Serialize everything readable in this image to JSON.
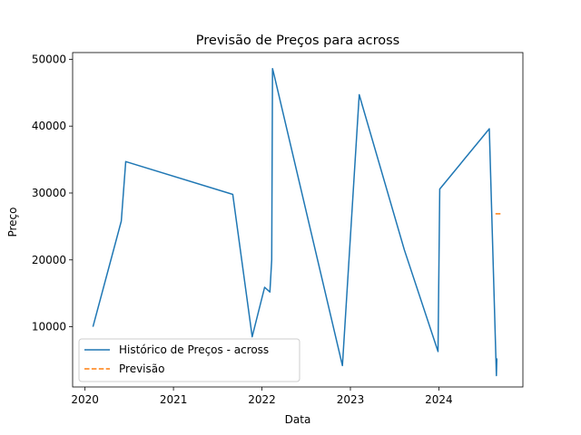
{
  "chart_data": {
    "type": "line",
    "title": "Previsão de Preços para across",
    "xlabel": "Data",
    "ylabel": "Preço",
    "xlim": [
      2019.86,
      2024.95
    ],
    "ylim": [
      1000,
      51000
    ],
    "x_ticks": [
      2020,
      2021,
      2022,
      2023,
      2024
    ],
    "x_tick_labels": [
      "2020",
      "2021",
      "2022",
      "2023",
      "2024"
    ],
    "y_ticks": [
      10000,
      20000,
      30000,
      40000,
      50000
    ],
    "y_tick_labels": [
      "10000",
      "20000",
      "30000",
      "40000",
      "50000"
    ],
    "grid": false,
    "legend_position": "bottom-left",
    "series": [
      {
        "name": "Histórico de Preços - across",
        "color": "#1f77b4",
        "style": "solid",
        "x": [
          2020.09,
          2020.41,
          2020.46,
          2021.67,
          2021.89,
          2022.03,
          2022.09,
          2022.11,
          2022.12,
          2022.14,
          2022.91,
          2023.1,
          2023.61,
          2023.99,
          2024.01,
          2024.57,
          2024.65,
          2024.655
        ],
        "y": [
          10000,
          25800,
          34700,
          29800,
          8500,
          15900,
          15200,
          20000,
          48600,
          47500,
          4200,
          44700,
          21500,
          6300,
          30600,
          39600,
          2700,
          5300
        ]
      },
      {
        "name": "Previsão",
        "color": "#ff7f0e",
        "style": "dashed",
        "x": [
          2024.64,
          2024.72
        ],
        "y": [
          26900,
          26900
        ]
      }
    ]
  }
}
